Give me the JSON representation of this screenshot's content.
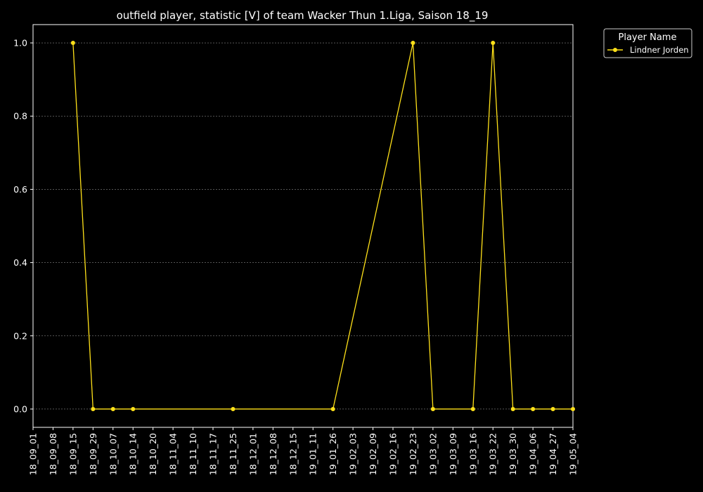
{
  "chart_data": {
    "type": "line",
    "title": "outfield player, statistic [V] of team Wacker Thun 1.Liga, Saison 18_19",
    "xlabel": "",
    "ylabel": "",
    "categories": [
      "18_09_01",
      "18_09_08",
      "18_09_15",
      "18_09_29",
      "18_10_07",
      "18_10_14",
      "18_10_20",
      "18_11_04",
      "18_11_10",
      "18_11_17",
      "18_11_25",
      "18_12_01",
      "18_12_08",
      "18_12_15",
      "19_01_11",
      "19_01_26",
      "19_02_03",
      "19_02_09",
      "19_02_16",
      "19_02_23",
      "19_03_02",
      "19_03_09",
      "19_03_16",
      "19_03_22",
      "19_03_30",
      "19_04_06",
      "19_04_27",
      "19_05_04"
    ],
    "yticks": [
      "0.0",
      "0.2",
      "0.4",
      "0.6",
      "0.8",
      "1.0"
    ],
    "ylim": [
      -0.05,
      1.05
    ],
    "grid": true,
    "legend": {
      "title": "Player Name",
      "placement": "outside top-right"
    },
    "series": [
      {
        "name": "Lindner Jorden",
        "color": "#FFE119",
        "values": [
          null,
          null,
          1,
          0,
          0,
          0,
          null,
          null,
          null,
          null,
          0,
          null,
          null,
          null,
          null,
          0,
          null,
          null,
          null,
          1,
          0,
          null,
          0,
          1,
          0,
          0,
          0,
          0
        ]
      }
    ]
  }
}
